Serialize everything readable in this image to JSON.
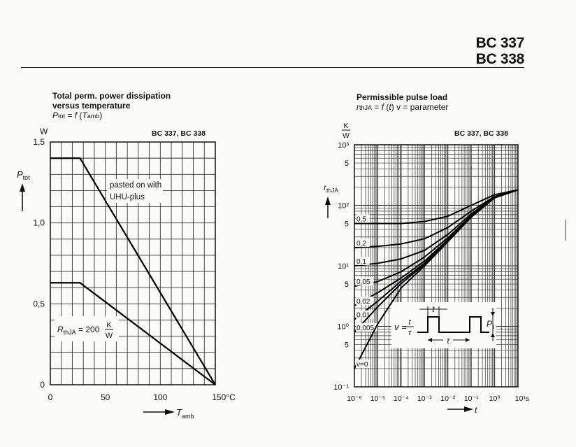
{
  "header": {
    "line1": "BC 337",
    "line2": "BC 338"
  },
  "chart_data": [
    {
      "type": "line",
      "title": "Total perm. power dissipation",
      "subtitle": "versus temperature",
      "formula": "P_tot = f (T_amb)",
      "models": "BC 337, BC 338",
      "ylabel": "P_tot",
      "yunit": "W",
      "xlabel": "T_amb",
      "xunit": "°C",
      "xlim": [
        0,
        150
      ],
      "ylim": [
        0,
        1.5
      ],
      "x_ticks": [
        0,
        50,
        100,
        150
      ],
      "x_tick_labels": [
        "0",
        "50",
        "100",
        "150°C"
      ],
      "y_ticks": [
        0,
        0.5,
        1.0,
        1.5
      ],
      "y_tick_labels": [
        "0",
        "0,5",
        "1,0",
        "1,5"
      ],
      "grid": true,
      "series": [
        {
          "name": "pasted on with UHU-plus",
          "x": [
            0,
            27,
            150
          ],
          "y": [
            1.4,
            1.4,
            0
          ]
        },
        {
          "name": "",
          "x": [
            0,
            27,
            150
          ],
          "y": [
            0.63,
            0.63,
            0
          ]
        }
      ],
      "annotations": [
        "pasted on with",
        "UHU-plus",
        "R_thJA = 200 K/W"
      ]
    },
    {
      "type": "line",
      "title": "Permissible pulse load",
      "formula": "r_thJA = f (t) v = parameter",
      "models": "BC 337, BC 338",
      "ylabel": "r_thJA",
      "yunit": "K/W",
      "xlabel": "t",
      "xunit": "s",
      "x_scale": "log",
      "y_scale": "log",
      "xlim": [
        1e-06,
        10
      ],
      "ylim": [
        0.1,
        1000
      ],
      "x_tick_labels": [
        "10⁻⁶",
        "10⁻⁵",
        "10⁻⁴",
        "10⁻³",
        "10⁻²",
        "10⁻¹",
        "10⁰",
        "10¹s"
      ],
      "y_tick_labels": [
        "10⁻¹",
        "5",
        "10⁰",
        "5",
        "10¹",
        "5",
        "10²",
        "5",
        "10³"
      ],
      "grid": true,
      "series": [
        {
          "name": "0,5",
          "x": [
            1e-06,
            1e-05,
            0.0001,
            0.001,
            0.01,
            0.1,
            1,
            10
          ],
          "y": [
            50,
            50,
            50,
            54,
            66,
            100,
            150,
            180
          ]
        },
        {
          "name": "0,2",
          "x": [
            1e-06,
            1e-05,
            0.0001,
            0.001,
            0.01,
            0.1,
            1,
            10
          ],
          "y": [
            20,
            21,
            23,
            28,
            43,
            80,
            140,
            180
          ]
        },
        {
          "name": "0,1",
          "x": [
            1e-06,
            1e-05,
            0.0001,
            0.001,
            0.01,
            0.1,
            1,
            10
          ],
          "y": [
            10,
            11,
            13,
            18,
            33,
            72,
            138,
            180
          ]
        },
        {
          "name": "0,05",
          "x": [
            1e-06,
            1e-05,
            0.0001,
            0.001,
            0.01,
            0.1,
            1,
            10
          ],
          "y": [
            4.6,
            5.5,
            8,
            14,
            29,
            68,
            136,
            180
          ]
        },
        {
          "name": "0,02",
          "x": [
            1e-06,
            1e-05,
            0.0001,
            0.001,
            0.01,
            0.1,
            1,
            10
          ],
          "y": [
            2.2,
            3.6,
            6.3,
            12,
            27,
            66,
            135,
            180
          ]
        },
        {
          "name": "0,01",
          "x": [
            1e-06,
            1e-05,
            0.0001,
            0.001,
            0.01,
            0.1,
            1,
            10
          ],
          "y": [
            1.3,
            2.6,
            5.6,
            11,
            26,
            65,
            134,
            180
          ]
        },
        {
          "name": "0,005",
          "x": [
            1e-06,
            1e-05,
            0.0001,
            0.001,
            0.01,
            0.1,
            1,
            10
          ],
          "y": [
            0.8,
            2.1,
            5.1,
            10.5,
            25.5,
            64,
            134,
            180
          ]
        },
        {
          "name": "v=0",
          "x": [
            1e-06,
            1e-05,
            0.0001,
            0.001,
            0.01,
            0.1,
            1,
            10
          ],
          "y": [
            0.2,
            1.1,
            4.3,
            10,
            25,
            64,
            133,
            180
          ]
        }
      ],
      "inset_labels": {
        "t": "t",
        "tau": "τ",
        "formula_lhs": "v =",
        "frac_num": "t",
        "frac_den": "τ",
        "p": "P",
        "p_sub": "i"
      }
    }
  ]
}
